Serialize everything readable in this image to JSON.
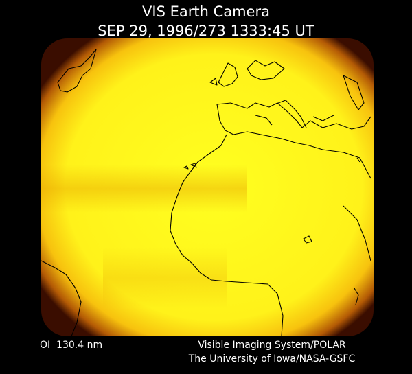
{
  "header": {
    "title": "VIS Earth Camera",
    "timestamp": "SEP 29, 1996/273 1333:45 UT"
  },
  "footer": {
    "wavelength": "OI  130.4 nm",
    "instrument": "Visible Imaging System/POLAR",
    "institution": "The University of Iowa/NASA-GSFC"
  }
}
